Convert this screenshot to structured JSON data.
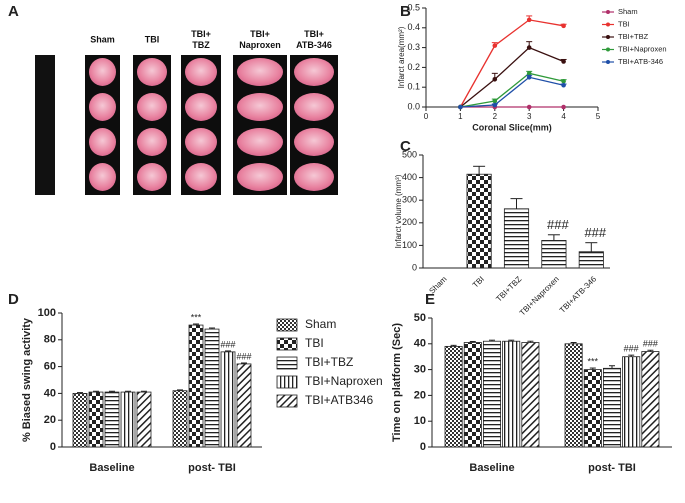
{
  "photo_panel": {
    "panel": "A",
    "columns": [
      "Sham",
      "TBI",
      "TBI+ TBZ",
      "TBI+ Naproxen",
      "TBI+ ATB-346"
    ]
  },
  "chart_data": [
    {
      "type": "line",
      "panel": "B",
      "ylabel": "Infarct area(mm²)",
      "xlabel": "Coronal Slice(mm)",
      "x": [
        1,
        2,
        3,
        4
      ],
      "xlim": [
        0,
        5
      ],
      "xticks": [
        0,
        1,
        2,
        3,
        4,
        5
      ],
      "ylim": [
        0,
        0.5
      ],
      "yticks": [
        {
          "value": 0,
          "label": "0.0"
        },
        0.1,
        0.2,
        0.3,
        0.4,
        0.5
      ],
      "series": [
        {
          "name": "Sham",
          "color": "#b0306a",
          "values": [
            0,
            0,
            0,
            0
          ],
          "errors": [
            0,
            0,
            0,
            0
          ]
        },
        {
          "name": "TBI",
          "color": "#e8322f",
          "values": [
            0,
            0.31,
            0.44,
            0.41
          ],
          "errors": [
            0,
            0.015,
            0.02,
            0.008
          ]
        },
        {
          "name": "TBI+TBZ",
          "color": "#3a1010",
          "values": [
            0,
            0.14,
            0.3,
            0.23
          ],
          "errors": [
            0,
            0.03,
            0.03,
            0.01
          ]
        },
        {
          "name": "TBI+Naproxen",
          "color": "#2f9a3a",
          "values": [
            0,
            0.03,
            0.17,
            0.13
          ],
          "errors": [
            0,
            0.01,
            0.01,
            0.008
          ]
        },
        {
          "name": "TBI+ATB-346",
          "color": "#1f4fa8",
          "values": [
            0,
            0.01,
            0.15,
            0.11
          ],
          "errors": [
            0,
            0.005,
            0.01,
            0.006
          ]
        }
      ]
    },
    {
      "type": "bar",
      "panel": "C",
      "ylabel": "Infarct volume (mm³)",
      "categories": [
        "Sham",
        "TBI",
        "TBI+TBZ",
        "TBI+Naproxen",
        "TBI+ATB-346"
      ],
      "values": [
        0,
        415,
        262,
        122,
        72
      ],
      "errors": [
        0,
        35,
        45,
        25,
        40
      ],
      "patterns": [
        "checker",
        "checker",
        "hlines",
        "hlines",
        "hlines"
      ],
      "ylim": [
        0,
        500
      ],
      "yticks": [
        0,
        100,
        200,
        300,
        400,
        500
      ],
      "annotations": [
        {
          "text": "###",
          "category": 3
        },
        {
          "text": "###",
          "category": 4
        }
      ]
    },
    {
      "type": "bar",
      "panel": "D",
      "ylabel": "% Biased swing activity",
      "legend": true,
      "categories": [
        "Baseline",
        "post- TBI"
      ],
      "ylim": [
        0,
        100
      ],
      "yticks": [
        0,
        20,
        40,
        60,
        80,
        100
      ],
      "series": [
        {
          "name": "Sham",
          "pattern": "fine",
          "values": [
            40,
            42
          ],
          "errors": [
            0.6,
            0.6
          ]
        },
        {
          "name": "TBI",
          "pattern": "checker",
          "values": [
            41,
            91
          ],
          "errors": [
            0.6,
            0.8
          ]
        },
        {
          "name": "TBI+TBZ",
          "pattern": "hlines",
          "values": [
            41,
            88
          ],
          "errors": [
            0.6,
            0.8
          ]
        },
        {
          "name": "TBI+Naproxen",
          "pattern": "vlines",
          "values": [
            41,
            71
          ],
          "errors": [
            0.6,
            0.7
          ]
        },
        {
          "name": "TBI+ATB346",
          "pattern": "diag",
          "values": [
            41,
            62
          ],
          "errors": [
            0.6,
            0.7
          ]
        }
      ],
      "annotations": [
        {
          "text": "***",
          "series": 1,
          "category": 1
        },
        {
          "text": "###",
          "series": 3,
          "category": 1
        },
        {
          "text": "###",
          "series": 4,
          "category": 1
        }
      ]
    },
    {
      "type": "bar",
      "panel": "E",
      "ylabel": "Time on platform (Sec)",
      "categories": [
        "Baseline",
        "post- TBI"
      ],
      "ylim": [
        0,
        50
      ],
      "yticks": [
        0,
        10,
        20,
        30,
        40,
        50
      ],
      "series": [
        {
          "pattern": "fine",
          "values": [
            39,
            40
          ],
          "errors": [
            0.4,
            0.5
          ]
        },
        {
          "pattern": "checker",
          "values": [
            40.5,
            30
          ],
          "errors": [
            0.4,
            0.6
          ]
        },
        {
          "pattern": "hlines",
          "values": [
            41,
            30.5
          ],
          "errors": [
            0.4,
            1
          ]
        },
        {
          "pattern": "vlines",
          "values": [
            41,
            35
          ],
          "errors": [
            0.4,
            0.6
          ]
        },
        {
          "pattern": "diag",
          "values": [
            40.5,
            37
          ],
          "errors": [
            0.5,
            0.5
          ]
        }
      ],
      "annotations": [
        {
          "text": "***",
          "series": 1,
          "category": 1
        },
        {
          "text": "###",
          "series": 3,
          "category": 1
        },
        {
          "text": "###",
          "series": 4,
          "category": 1
        }
      ]
    }
  ]
}
